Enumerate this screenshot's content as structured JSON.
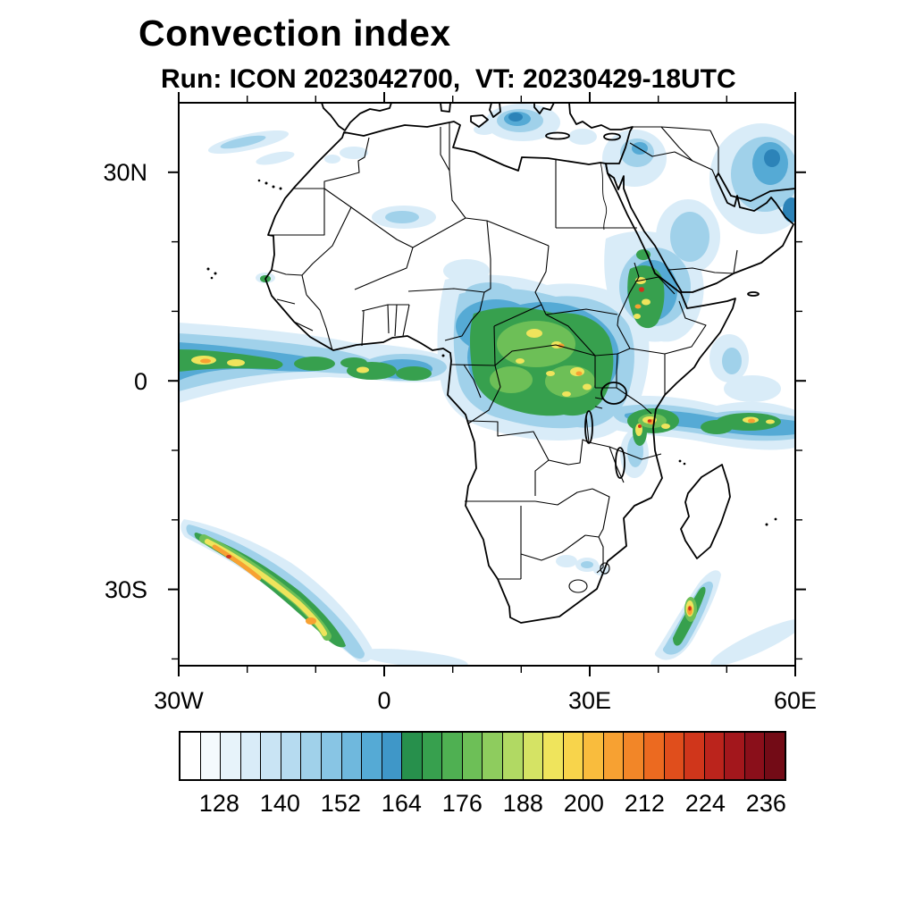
{
  "header": {
    "title": "Convection index",
    "subtitle": "Run: ICON 2023042700,  VT: 20230429-18UTC"
  },
  "axes": {
    "y_labels": [
      "30N",
      "0",
      "30S"
    ],
    "x_labels": [
      "30W",
      "0",
      "30E",
      "60E"
    ]
  },
  "chart_data": {
    "type": "heatmap",
    "title": "Convection index",
    "model": "ICON",
    "run": "2023042700",
    "valid_time": "20230429-18UTC",
    "x_axis": {
      "tick_labels": [
        "30W",
        "0",
        "30E",
        "60E"
      ],
      "lon_range_deg": [
        -30,
        60
      ],
      "minor_tick_interval_deg": 10
    },
    "y_axis": {
      "tick_labels": [
        "30N",
        "0",
        "30S"
      ],
      "lat_range_deg": [
        -41,
        40
      ],
      "minor_tick_interval_deg": 10
    },
    "grid": "off",
    "projection": "lat-lon map of Africa with country borders",
    "colorbar": {
      "min": 120,
      "max": 240,
      "step": 4,
      "tick_labels": [
        128,
        140,
        152,
        164,
        176,
        188,
        200,
        212,
        224,
        236
      ],
      "colors": [
        "#ffffff",
        "#f4fafd",
        "#e7f3fa",
        "#d9ecf8",
        "#c9e4f4",
        "#b6dbf0",
        "#a0d1ea",
        "#88c5e4",
        "#6fb8dd",
        "#55aad5",
        "#3f97c8",
        "#27904c",
        "#37a04e",
        "#4fb052",
        "#6dbf57",
        "#8ecc5e",
        "#b1d963",
        "#d5e364",
        "#efe45c",
        "#f8d44b",
        "#f9bc3d",
        "#f7a132",
        "#f28628",
        "#ec6a20",
        "#e04e1c",
        "#d0361b",
        "#bb241c",
        "#a3171c",
        "#8a0f1a",
        "#730b16"
      ]
    },
    "regions": [
      {
        "name": "Atlantic ITCZ band off West Africa",
        "lon_extent": [
          -31,
          2
        ],
        "lat_extent": [
          -2,
          6
        ],
        "peak_index": 208
      },
      {
        "name": "Gulf of Guinea coastal band",
        "lon_extent": [
          -6,
          10
        ],
        "lat_extent": [
          0,
          6
        ],
        "peak_index": 196
      },
      {
        "name": "Congo Basin and Cameroon",
        "lon_extent": [
          10,
          33
        ],
        "lat_extent": [
          -9,
          13
        ],
        "peak_index": 212
      },
      {
        "name": "Ethiopian Highlands",
        "lon_extent": [
          33,
          42
        ],
        "lat_extent": [
          5,
          15
        ],
        "peak_index": 224
      },
      {
        "name": "Southern Red Sea / SW Arabia",
        "lon_extent": [
          38,
          48
        ],
        "lat_extent": [
          12,
          25
        ],
        "peak_index": 160
      },
      {
        "name": "SE Arabia / Gulf region",
        "lon_extent": [
          50,
          60
        ],
        "lat_extent": [
          18,
          36
        ],
        "peak_index": 168
      },
      {
        "name": "Central Mediterranean",
        "lon_extent": [
          14,
          22
        ],
        "lat_extent": [
          35,
          40
        ],
        "peak_index": 172
      },
      {
        "name": "East Mediterranean / Turkey / Cyprus",
        "lon_extent": [
          30,
          42
        ],
        "lat_extent": [
          32,
          40
        ],
        "peak_index": 164
      },
      {
        "name": "Subtropical NE Atlantic streaks",
        "lon_extent": [
          -28,
          -14
        ],
        "lat_extent": [
          30,
          38
        ],
        "peak_index": 148
      },
      {
        "name": "Sahara isolated patches",
        "lon_extent": [
          -5,
          8
        ],
        "lat_extent": [
          20,
          28
        ],
        "peak_index": 148
      },
      {
        "name": "SW Indian Ocean band",
        "lon_extent": [
          32,
          60
        ],
        "lat_extent": [
          -10,
          -3
        ],
        "peak_index": 220
      },
      {
        "name": "South Atlantic frontal streak",
        "lon_extent": [
          -29,
          -4
        ],
        "lat_extent": [
          -40,
          -21
        ],
        "peak_index": 216
      },
      {
        "name": "Streak southeast of Madagascar",
        "lon_extent": [
          39,
          49
        ],
        "lat_extent": [
          -41,
          -27
        ],
        "peak_index": 220
      },
      {
        "name": "South Africa interior cells",
        "lon_extent": [
          24,
          32
        ],
        "lat_extent": [
          -31,
          -25
        ],
        "peak_index": 152
      }
    ]
  }
}
